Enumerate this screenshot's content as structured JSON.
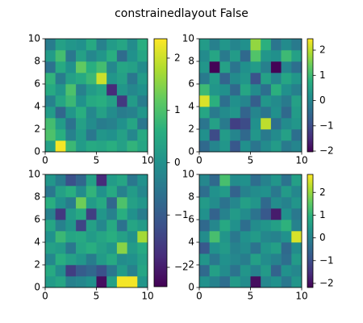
{
  "title": "constrainedlayout False",
  "chart_data": [
    {
      "type": "heatmap",
      "colormap": "viridis",
      "xlim": [
        0,
        10
      ],
      "ylim": [
        0,
        10
      ],
      "xticks": [
        0,
        5,
        10
      ],
      "yticks": [
        0,
        2,
        4,
        6,
        8,
        10
      ],
      "clim": [
        -2.37,
        2.37
      ],
      "colorbar_ticks": [
        {
          "value": -2,
          "label": "−2"
        },
        {
          "value": -1,
          "label": "−1"
        },
        0,
        1,
        2
      ],
      "values": [
        [
          0.3,
          2.3,
          0.8,
          0.2,
          0.5,
          0.4,
          0.6,
          0.3,
          0.7,
          0.4
        ],
        [
          1.0,
          0.6,
          -0.3,
          0.2,
          -0.5,
          0.1,
          0.0,
          0.3,
          -0.2,
          0.5
        ],
        [
          0.9,
          0.2,
          -0.6,
          0.3,
          -0.1,
          -0.4,
          -0.3,
          0.0,
          0.4,
          -0.5
        ],
        [
          0.2,
          -0.8,
          0.1,
          0.6,
          -0.2,
          0.3,
          -0.1,
          -0.4,
          -0.3,
          0.1
        ],
        [
          -0.3,
          0.4,
          0.8,
          0.0,
          0.5,
          0.6,
          0.3,
          -1.6,
          0.2,
          -0.4
        ],
        [
          0.5,
          0.1,
          1.0,
          -0.3,
          0.2,
          0.4,
          -1.8,
          0.1,
          -0.2,
          0.0
        ],
        [
          0.7,
          -0.4,
          0.3,
          0.5,
          0.8,
          2.0,
          0.1,
          0.3,
          -0.5,
          0.2
        ],
        [
          -0.6,
          0.5,
          0.0,
          1.2,
          0.6,
          0.9,
          -0.2,
          0.4,
          0.3,
          -0.1
        ],
        [
          0.2,
          0.9,
          -0.5,
          0.3,
          -0.2,
          0.1,
          0.6,
          -0.7,
          0.0,
          0.4
        ],
        [
          -0.4,
          0.3,
          0.1,
          0.0,
          0.5,
          -0.3,
          0.2,
          0.4,
          -0.1,
          0.6
        ]
      ]
    },
    {
      "type": "heatmap",
      "colormap": "viridis",
      "xlim": [
        0,
        10
      ],
      "ylim": [
        0,
        10
      ],
      "xticks": [
        0,
        5,
        10
      ],
      "yticks": [
        0,
        2,
        4,
        6,
        8,
        10
      ],
      "clim": [
        -2.03,
        2.45
      ],
      "colorbar_ticks": [
        {
          "value": -2,
          "label": "−2"
        },
        {
          "value": -1,
          "label": "−1"
        },
        0,
        1,
        2
      ],
      "values": [
        [
          -0.5,
          0.0,
          0.3,
          -0.8,
          0.2,
          -0.3,
          0.1,
          0.4,
          -0.2,
          0.0
        ],
        [
          0.2,
          -1.0,
          0.4,
          0.0,
          -0.5,
          0.3,
          -0.2,
          0.1,
          0.5,
          -0.4
        ],
        [
          -0.3,
          0.5,
          -0.2,
          -1.2,
          -1.0,
          0.2,
          2.0,
          -0.4,
          0.1,
          0.3
        ],
        [
          0.6,
          -0.2,
          0.1,
          0.3,
          -0.6,
          0.0,
          -0.3,
          0.2,
          -0.5,
          0.4
        ],
        [
          2.2,
          0.8,
          -0.4,
          0.2,
          0.0,
          -0.7,
          0.3,
          0.1,
          -0.2,
          0.5
        ],
        [
          1.0,
          0.3,
          0.2,
          -0.5,
          0.6,
          0.1,
          -0.4,
          0.8,
          0.2,
          -0.1
        ],
        [
          -0.2,
          0.4,
          -0.6,
          0.1,
          0.3,
          -0.9,
          0.5,
          0.0,
          0.6,
          0.3
        ],
        [
          0.3,
          -2.0,
          0.5,
          -0.3,
          0.2,
          0.4,
          -0.1,
          -2.0,
          0.0,
          -0.4
        ],
        [
          0.1,
          0.6,
          -0.2,
          0.4,
          -0.5,
          1.2,
          0.3,
          0.2,
          1.0,
          0.5
        ],
        [
          0.4,
          -0.1,
          0.3,
          0.0,
          0.2,
          1.7,
          0.8,
          -0.3,
          0.1,
          -0.2
        ]
      ]
    },
    {
      "type": "heatmap",
      "colormap": "viridis",
      "xlim": [
        0,
        10
      ],
      "ylim": [
        0,
        10
      ],
      "xticks": [
        0,
        5,
        10
      ],
      "yticks": [
        0,
        2,
        4,
        6,
        8,
        10
      ],
      "clim": [
        -2.37,
        2.37
      ],
      "values": [
        [
          0.2,
          0.4,
          -0.3,
          -0.2,
          0.0,
          -2.2,
          0.3,
          2.3,
          2.3,
          0.1
        ],
        [
          0.5,
          -0.1,
          -1.5,
          -1.0,
          -0.8,
          -1.2,
          -0.5,
          0.2,
          -0.3,
          0.4
        ],
        [
          -0.2,
          0.6,
          0.3,
          0.1,
          -0.4,
          0.2,
          0.5,
          -0.1,
          0.0,
          0.3
        ],
        [
          0.3,
          0.2,
          -0.5,
          0.4,
          0.6,
          0.3,
          0.1,
          1.5,
          0.2,
          0.5
        ],
        [
          0.0,
          0.8,
          0.4,
          0.5,
          0.2,
          0.4,
          0.6,
          0.3,
          0.0,
          1.7
        ],
        [
          0.4,
          -0.3,
          0.1,
          -1.4,
          0.3,
          -0.2,
          0.5,
          -0.6,
          0.4,
          0.2
        ],
        [
          -0.3,
          -1.6,
          0.2,
          0.5,
          -1.5,
          0.1,
          -0.3,
          0.6,
          0.0,
          -0.4
        ],
        [
          0.6,
          0.0,
          -0.4,
          1.3,
          0.2,
          0.5,
          -0.8,
          1.0,
          0.3,
          0.1
        ],
        [
          -0.5,
          0.3,
          0.6,
          -0.1,
          0.7,
          0.0,
          0.5,
          -0.3,
          0.2,
          -0.2
        ],
        [
          0.1,
          -0.4,
          -1.2,
          -0.8,
          0.3,
          -1.8,
          0.2,
          0.4,
          -0.5,
          0.0
        ]
      ]
    },
    {
      "type": "heatmap",
      "colormap": "viridis",
      "xlim": [
        0,
        10
      ],
      "ylim": [
        0,
        10
      ],
      "xticks": [
        0,
        5,
        10
      ],
      "yticks": [
        0,
        2,
        4,
        6,
        8,
        10
      ],
      "clim": [
        -2.18,
        2.79
      ],
      "colorbar_ticks": [
        {
          "value": -2,
          "label": "−2"
        },
        {
          "value": -1,
          "label": "−1"
        },
        0,
        1,
        2
      ],
      "values": [
        [
          0.3,
          0.0,
          -0.4,
          0.5,
          0.2,
          -2.0,
          0.1,
          0.3,
          -0.2,
          0.4
        ],
        [
          -0.5,
          0.6,
          0.2,
          -0.3,
          0.4,
          0.0,
          0.5,
          -0.6,
          0.3,
          0.1
        ],
        [
          0.4,
          -0.2,
          0.3,
          0.1,
          -0.1,
          0.6,
          0.2,
          0.0,
          -0.4,
          0.5
        ],
        [
          -0.8,
          0.3,
          0.5,
          0.0,
          0.2,
          -0.3,
          0.4,
          0.6,
          -0.5,
          0.2
        ],
        [
          0.2,
          1.3,
          0.4,
          -0.2,
          0.3,
          0.5,
          0.1,
          0.0,
          0.3,
          2.5
        ],
        [
          -0.5,
          0.1,
          0.8,
          0.3,
          -0.4,
          0.2,
          0.4,
          0.6,
          1.0,
          0.0
        ],
        [
          0.3,
          -0.6,
          0.0,
          0.5,
          0.2,
          -0.3,
          -0.8,
          -1.8,
          0.3,
          -0.2
        ],
        [
          0.5,
          0.2,
          -0.3,
          0.1,
          0.6,
          0.4,
          -0.5,
          0.2,
          0.0,
          0.4
        ],
        [
          -0.4,
          0.3,
          0.5,
          -0.6,
          0.0,
          0.2,
          0.3,
          -0.2,
          0.5,
          0.1
        ],
        [
          0.1,
          -0.5,
          1.3,
          0.2,
          0.3,
          -0.4,
          0.0,
          0.4,
          -0.3,
          0.6
        ]
      ]
    }
  ]
}
